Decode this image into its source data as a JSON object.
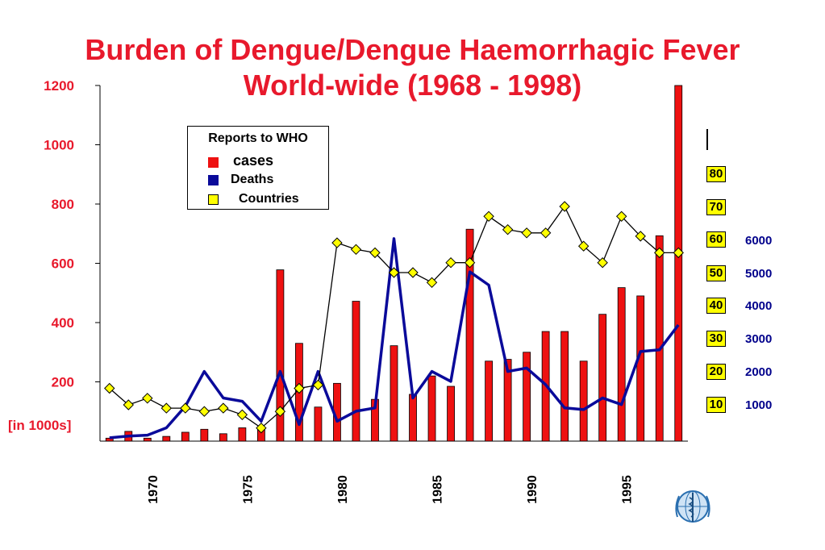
{
  "title": {
    "line1": "Burden of Dengue/Dengue Haemorrhagic Fever",
    "line2": "World-wide (1968 - 1998)"
  },
  "unit_label": "[in 1000s]",
  "legend": {
    "title": "Reports to WHO",
    "items": [
      {
        "label": "cases",
        "color": "#ee1111"
      },
      {
        "label": "Deaths",
        "color": "#0a0a9a"
      },
      {
        "label": "Countries",
        "color": "#ffff00"
      }
    ]
  },
  "countries_axis": [
    "80",
    "70",
    "60",
    "50",
    "40",
    "30",
    "20",
    "10"
  ],
  "deaths_axis": [
    "6000",
    "5000",
    "4000",
    "3000",
    "2000",
    "1000"
  ],
  "colors": {
    "title": "#e8192c",
    "cases": "#ee1111",
    "deaths": "#0a0a9a",
    "countries": "#ffff00",
    "deaths_labels": "#00008b"
  },
  "emblem": "who-emblem-icon",
  "chart_data": {
    "type": "bar",
    "title": "Burden of Dengue/Dengue Haemorrhagic Fever World-wide (1968 - 1998)",
    "ylabel": "[in 1000s]",
    "ylim": [
      0,
      1200
    ],
    "yticks": [
      200,
      400,
      600,
      800,
      1000,
      1200
    ],
    "xticks": [
      1970,
      1975,
      1980,
      1985,
      1990,
      1995
    ],
    "years": [
      1968,
      1969,
      1970,
      1971,
      1972,
      1973,
      1974,
      1975,
      1976,
      1977,
      1978,
      1979,
      1980,
      1981,
      1982,
      1983,
      1984,
      1985,
      1986,
      1987,
      1988,
      1989,
      1990,
      1991,
      1992,
      1993,
      1994,
      1995,
      1996,
      1997,
      1998
    ],
    "series": [
      {
        "name": "cases",
        "type": "bar",
        "units": "1000s",
        "values": [
          10,
          33,
          10,
          16,
          30,
          40,
          25,
          45,
          40,
          578,
          330,
          115,
          195,
          472,
          141,
          322,
          158,
          220,
          185,
          715,
          270,
          276,
          300,
          370,
          370,
          270,
          428,
          518,
          490,
          693,
          1200
        ]
      },
      {
        "name": "Deaths",
        "type": "line",
        "axis": "right",
        "ylim": [
          0,
          6000
        ],
        "values": [
          100,
          150,
          180,
          400,
          1050,
          2100,
          1300,
          1200,
          600,
          2100,
          500,
          2100,
          600,
          900,
          1000,
          6100,
          1300,
          2100,
          1800,
          5100,
          4700,
          2100,
          2200,
          1700,
          1000,
          950,
          1300,
          1100,
          2700,
          2750,
          3500
        ]
      },
      {
        "name": "Countries",
        "type": "line",
        "axis": "right",
        "ylim": [
          0,
          90
        ],
        "values": [
          15,
          10,
          12,
          9,
          9,
          8,
          9,
          7,
          3,
          8,
          15,
          16,
          59,
          57,
          56,
          50,
          50,
          47,
          53,
          53,
          67,
          63,
          62,
          62,
          70,
          58,
          53,
          67,
          61,
          56,
          56
        ]
      }
    ],
    "grid": false,
    "legend_position": "top-left"
  }
}
